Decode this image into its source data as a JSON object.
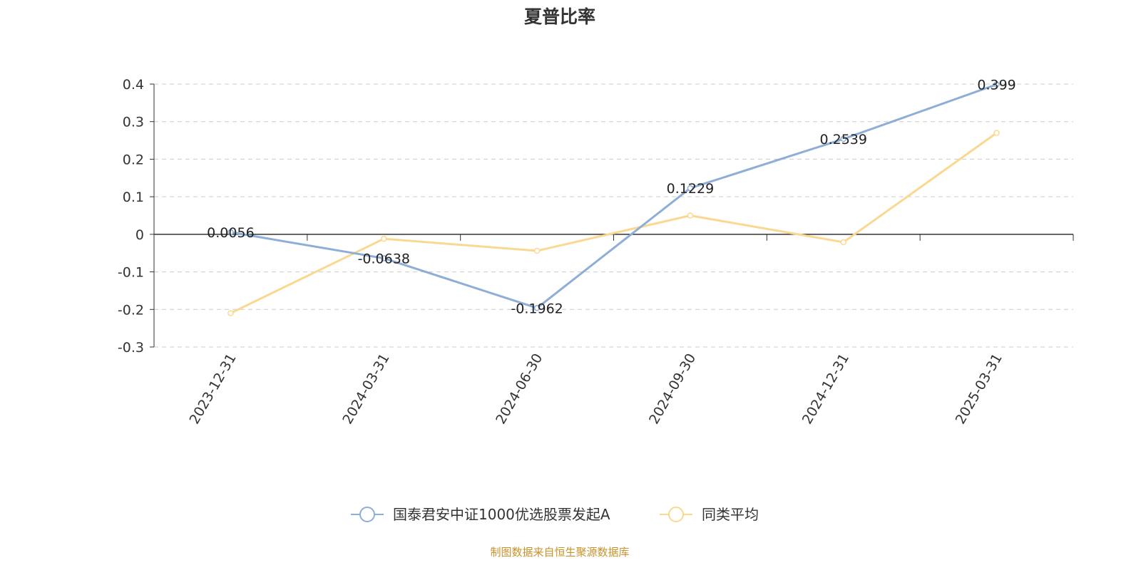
{
  "source_note": "制图数据来自恒生聚源数据库",
  "chart_data": {
    "type": "line",
    "title": "夏普比率",
    "categories": [
      "2023-12-31",
      "2024-03-31",
      "2024-06-30",
      "2024-09-30",
      "2024-12-31",
      "2025-03-31"
    ],
    "ylim": [
      -0.3,
      0.4
    ],
    "yticks": [
      -0.3,
      -0.2,
      -0.1,
      0,
      0.1,
      0.2,
      0.3,
      0.4
    ],
    "ytick_labels": [
      "-0.3",
      "-0.2",
      "-0.1",
      "0",
      "0.1",
      "0.2",
      "0.3",
      "0.4"
    ],
    "grid": true,
    "legend_position": "bottom",
    "series": [
      {
        "name": "国泰君安中证1000优选股票发起A",
        "color": "#8eaed8",
        "values": [
          0.0056,
          -0.0638,
          -0.1962,
          0.1229,
          0.2539,
          0.399
        ],
        "labels": [
          "0.0056",
          "-0.0638",
          "-0.1962",
          "0.1229",
          "0.2539",
          "0.399"
        ]
      },
      {
        "name": "同类平均",
        "color": "#fbd891",
        "values": [
          -0.21,
          -0.012,
          -0.044,
          0.05,
          -0.021,
          0.27
        ]
      }
    ]
  }
}
